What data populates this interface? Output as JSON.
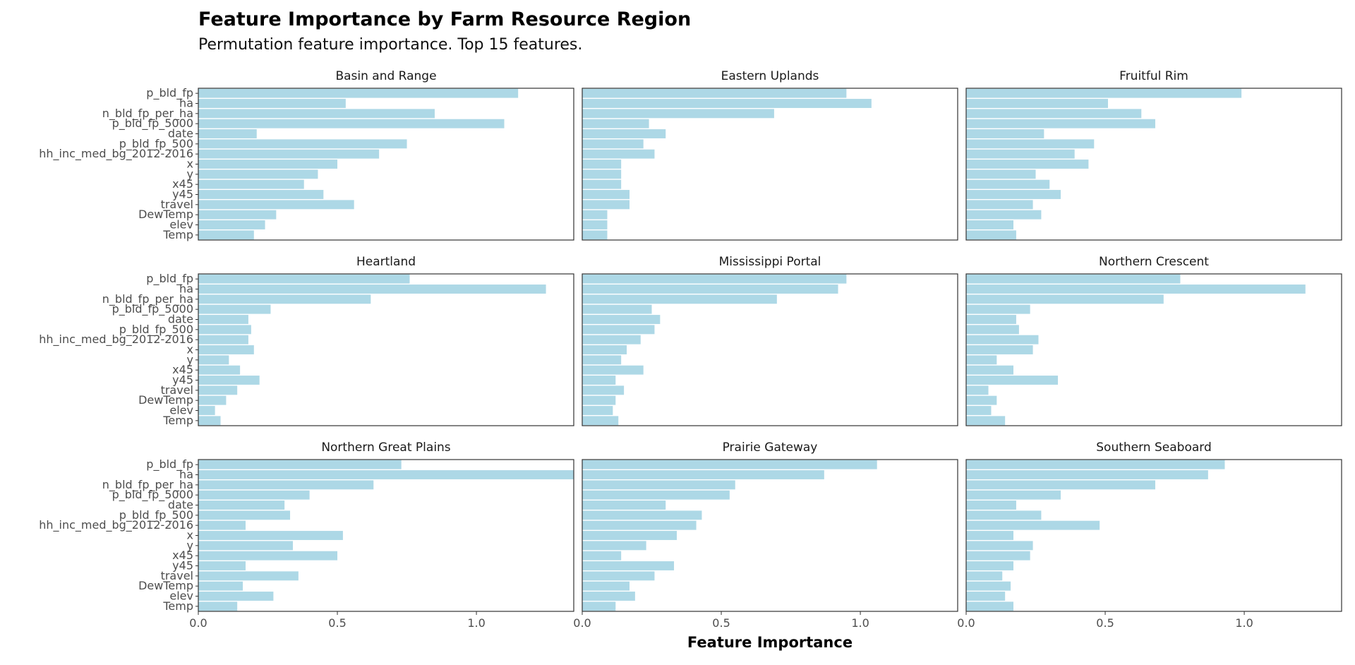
{
  "chart_data": {
    "type": "bar",
    "orientation": "horizontal",
    "title": "Feature Importance by Farm Resource Region",
    "subtitle": "Permutation feature importance. Top 15 features.",
    "xlabel": "Feature Importance",
    "ylabel": "",
    "xlim": [
      0,
      1.35
    ],
    "x_ticks": [
      0.0,
      0.5,
      1.0
    ],
    "x_tick_labels": [
      "0.0",
      "0.5",
      "1.0"
    ],
    "grid": false,
    "bar_color": "#add8e6",
    "categories": [
      "p_bld_fp",
      "ha",
      "n_bld_fp_per_ha",
      "p_bld_fp_5000",
      "date",
      "p_bld_fp_500",
      "hh_inc_med_bg_2012-2016",
      "x",
      "y",
      "x45",
      "y45",
      "travel",
      "DewTemp",
      "elev",
      "Temp"
    ],
    "facets": [
      {
        "name": "Basin and Range",
        "values": [
          1.15,
          0.53,
          0.85,
          1.1,
          0.21,
          0.75,
          0.65,
          0.5,
          0.43,
          0.38,
          0.45,
          0.56,
          0.28,
          0.24,
          0.2
        ]
      },
      {
        "name": "Eastern Uplands",
        "values": [
          0.95,
          1.04,
          0.69,
          0.24,
          0.3,
          0.22,
          0.26,
          0.14,
          0.14,
          0.14,
          0.17,
          0.17,
          0.09,
          0.09,
          0.09
        ]
      },
      {
        "name": "Fruitful Rim",
        "values": [
          0.99,
          0.51,
          0.63,
          0.68,
          0.28,
          0.46,
          0.39,
          0.44,
          0.25,
          0.3,
          0.34,
          0.24,
          0.27,
          0.17,
          0.18
        ]
      },
      {
        "name": "Heartland",
        "values": [
          0.76,
          1.25,
          0.62,
          0.26,
          0.18,
          0.19,
          0.18,
          0.2,
          0.11,
          0.15,
          0.22,
          0.14,
          0.1,
          0.06,
          0.08
        ]
      },
      {
        "name": "Mississippi Portal",
        "values": [
          0.95,
          0.92,
          0.7,
          0.25,
          0.28,
          0.26,
          0.21,
          0.16,
          0.14,
          0.22,
          0.12,
          0.15,
          0.12,
          0.11,
          0.13
        ]
      },
      {
        "name": "Northern Crescent",
        "values": [
          0.77,
          1.22,
          0.71,
          0.23,
          0.18,
          0.19,
          0.26,
          0.24,
          0.11,
          0.17,
          0.33,
          0.08,
          0.11,
          0.09,
          0.14
        ]
      },
      {
        "name": "Northern Great Plains",
        "values": [
          0.73,
          1.35,
          0.63,
          0.4,
          0.31,
          0.33,
          0.17,
          0.52,
          0.34,
          0.5,
          0.17,
          0.36,
          0.16,
          0.27,
          0.14
        ]
      },
      {
        "name": "Prairie Gateway",
        "values": [
          1.06,
          0.87,
          0.55,
          0.53,
          0.3,
          0.43,
          0.41,
          0.34,
          0.23,
          0.14,
          0.33,
          0.26,
          0.17,
          0.19,
          0.12
        ]
      },
      {
        "name": "Southern Seaboard",
        "values": [
          0.93,
          0.87,
          0.68,
          0.34,
          0.18,
          0.27,
          0.48,
          0.17,
          0.24,
          0.23,
          0.17,
          0.13,
          0.16,
          0.14,
          0.17
        ]
      }
    ]
  }
}
